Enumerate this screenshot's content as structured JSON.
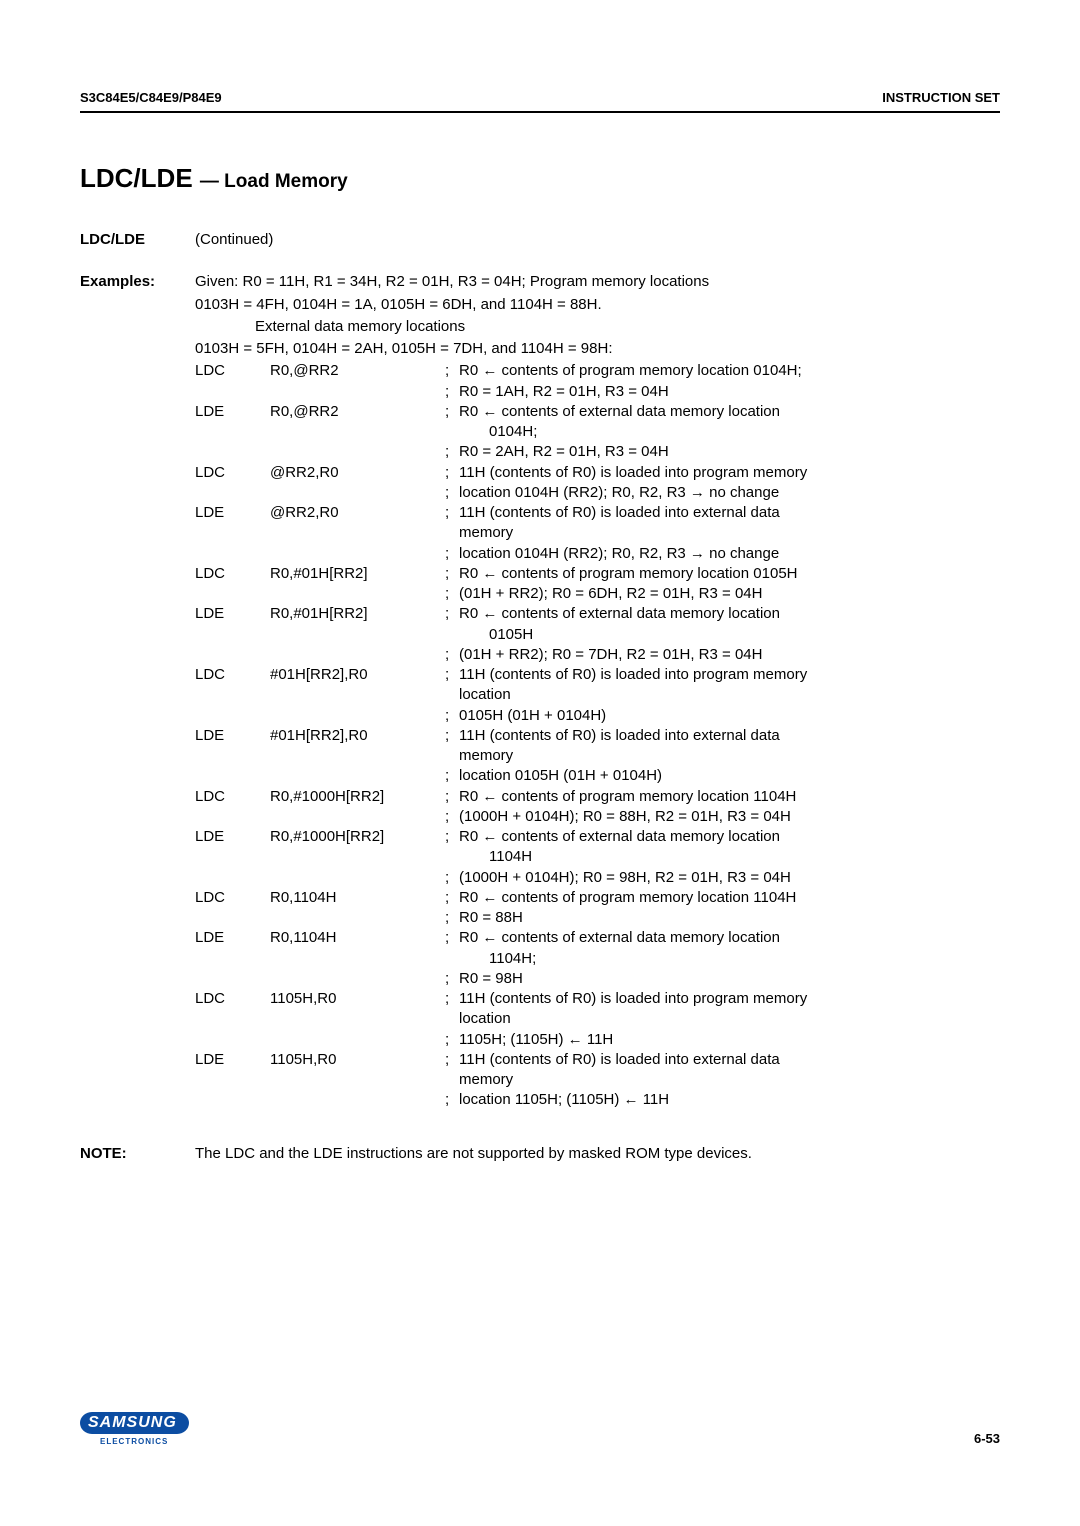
{
  "header": {
    "left": "S3C84E5/C84E9/P84E9",
    "right": "INSTRUCTION SET"
  },
  "title_main": "LDC/LDE",
  "title_sub": "— Load Memory",
  "section_label": "LDC/LDE",
  "continued": "(Continued)",
  "examples_label": "Examples:",
  "given_lines": [
    "Given: R0  =  11H, R1  =  34H, R2  =  01H, R3  =  04H; Program memory locations",
    "0103H  =  4FH, 0104H  =  1A, 0105H  =  6DH, and 1104H  =  88H."
  ],
  "given_indent": "External data memory locations",
  "given_line3": "0103H  =  5FH, 0104H  =  2AH, 0105H  =  7DH, and 1104H  =  98H:",
  "rows": [
    {
      "mn": "LDC",
      "op": "R0,@RR2",
      "c": [
        {
          "s": ";",
          "t": "R0  ←  contents of program memory location 0104H;"
        },
        {
          "s": ";",
          "t": "R0  =  1AH, R2  =  01H, R3  =  04H"
        }
      ]
    },
    {
      "mn": "LDE",
      "op": "R0,@RR2",
      "c": [
        {
          "s": ";",
          "t": "R0  ←  contents of external data memory location"
        },
        {
          "s": "",
          "t": "0104H;",
          "ind": true
        },
        {
          "s": ";",
          "t": "R0  =  2AH, R2  =  01H, R3  =  04H"
        }
      ]
    },
    {
      "mn": "LDC",
      "op": "@RR2,R0",
      "c": [
        {
          "s": ";",
          "t": "11H (contents of R0) is loaded into program memory"
        },
        {
          "s": ";",
          "t": "location 0104H (RR2); R0, R2, R3  →  no change"
        }
      ]
    },
    {
      "mn": "LDE",
      "op": "@RR2,R0",
      "c": [
        {
          "s": ";",
          "t": "11H (contents of R0) is loaded into external data"
        },
        {
          "s": "",
          "t": "memory"
        },
        {
          "s": ";",
          "t": "location 0104H (RR2); R0, R2, R3  →  no change"
        }
      ]
    },
    {
      "mn": "LDC",
      "op": "R0,#01H[RR2]",
      "c": [
        {
          "s": ";",
          "t": "R0  ←  contents of program memory location 0105H"
        },
        {
          "s": ";",
          "t": "(01H + RR2); R0  =  6DH, R2  =  01H, R3  =  04H"
        }
      ]
    },
    {
      "mn": "LDE",
      "op": "R0,#01H[RR2]",
      "c": [
        {
          "s": ";",
          "t": "R0  ←  contents of external data memory location"
        },
        {
          "s": "",
          "t": "0105H",
          "ind": true
        },
        {
          "s": ";",
          "t": "(01H + RR2); R0  =  7DH, R2  =  01H, R3  =  04H"
        }
      ]
    },
    {
      "mn": "LDC",
      "op": "#01H[RR2],R0",
      "c": [
        {
          "s": ";",
          "t": "11H (contents of R0) is loaded into program memory"
        },
        {
          "s": "",
          "t": "location"
        },
        {
          "s": ";",
          "t": "0105H (01H + 0104H)"
        }
      ]
    },
    {
      "mn": "LDE",
      "op": "#01H[RR2],R0",
      "c": [
        {
          "s": ";",
          "t": "11H (contents of R0) is loaded into external data"
        },
        {
          "s": "",
          "t": "memory"
        },
        {
          "s": ";",
          "t": "location 0105H (01H + 0104H)"
        }
      ]
    },
    {
      "mn": "LDC",
      "op": "R0,#1000H[RR2]",
      "c": [
        {
          "s": ";",
          "t": "R0  ←  contents of program memory location 1104H"
        },
        {
          "s": ";",
          "t": "(1000H + 0104H); R0  =  88H, R2  =  01H, R3  =  04H"
        }
      ]
    },
    {
      "mn": "LDE",
      "op": "R0,#1000H[RR2]",
      "c": [
        {
          "s": ";",
          "t": "R0  ←  contents of external data memory location"
        },
        {
          "s": "",
          "t": "1104H",
          "ind": true
        },
        {
          "s": ";",
          "t": "(1000H + 0104H); R0  =  98H, R2  =  01H, R3  =  04H"
        }
      ]
    },
    {
      "mn": "LDC",
      "op": "R0,1104H",
      "c": [
        {
          "s": ";",
          "t": "R0  ←  contents of program memory location 1104H"
        },
        {
          "s": ";",
          "t": "R0  =  88H"
        }
      ]
    },
    {
      "mn": "LDE",
      "op": "R0,1104H",
      "c": [
        {
          "s": ";",
          "t": "R0  ←  contents of external data memory location"
        },
        {
          "s": "",
          "t": "1104H;",
          "ind": true
        },
        {
          "s": ";",
          "t": "R0  =  98H"
        }
      ]
    },
    {
      "mn": "LDC",
      "op": "1105H,R0",
      "c": [
        {
          "s": ";",
          "t": "11H (contents of R0) is loaded into program memory"
        },
        {
          "s": "",
          "t": "location"
        },
        {
          "s": ";",
          "t": "1105H; (1105H)  ←  11H"
        }
      ]
    },
    {
      "mn": "LDE",
      "op": "1105H,R0",
      "c": [
        {
          "s": ";",
          "t": "11H (contents of R0) is loaded into external data"
        },
        {
          "s": "",
          "t": "memory"
        },
        {
          "s": ";",
          "t": "location 1105H; (1105H)  ←  11H"
        }
      ]
    }
  ],
  "note_label": "NOTE:",
  "note_text": "The LDC and the LDE instructions are not supported by masked ROM type devices.",
  "footer": {
    "logo_main": "SAMSUNG",
    "logo_sub": "ELECTRONICS",
    "page_num": "6-53"
  }
}
